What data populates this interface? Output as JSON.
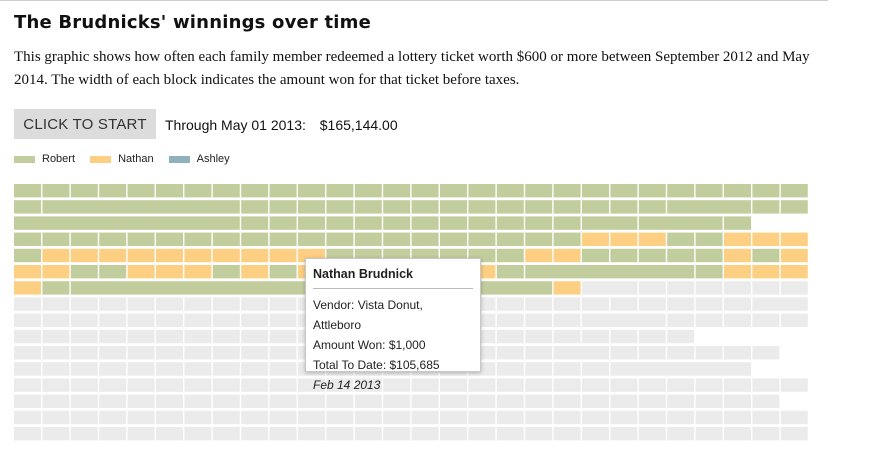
{
  "header": {
    "title": "The Brudnicks' winnings over time",
    "description": "This graphic shows how often each family member redeemed a lottery ticket worth $600 or more between September 2012 and May 2014. The width of each block indicates the amount won for that ticket before taxes."
  },
  "controls": {
    "start_label": "CLICK TO START",
    "through_label": "Through May 01 2013:",
    "total": "$165,144.00"
  },
  "legend": [
    {
      "name": "Robert",
      "color": "#c2cd9d"
    },
    {
      "name": "Nathan",
      "color": "#fdcf83"
    },
    {
      "name": "Ashley",
      "color": "#8fb0bd"
    }
  ],
  "tooltip": {
    "name": "Nathan Brudnick",
    "vendor": "Vendor: Vista Donut, Attleboro",
    "amount": "Amount Won: $1,000",
    "total": "Total To Date: $105,685",
    "date": "Feb 14 2013"
  },
  "chart_data": {
    "type": "bar",
    "title": "The Brudnicks' winnings over time",
    "metric": "amount won per ticket before taxes (USD), block width proportional to amount",
    "series": [
      "Robert",
      "Nathan",
      "Ashley"
    ],
    "unrevealed_color": "#ebebeb",
    "rows": [
      [
        [
          "R",
          1000
        ],
        [
          "R",
          1000
        ],
        [
          "R",
          1000
        ],
        [
          "R",
          1000
        ],
        [
          "R",
          1000
        ],
        [
          "R",
          1000
        ],
        [
          "R",
          1000
        ],
        [
          "R",
          1000
        ],
        [
          "R",
          1000
        ],
        [
          "R",
          1000
        ],
        [
          "R",
          1000
        ],
        [
          "R",
          1000
        ],
        [
          "R",
          1000
        ],
        [
          "R",
          1000
        ],
        [
          "R",
          1000
        ],
        [
          "R",
          1000
        ],
        [
          "R",
          1000
        ],
        [
          "R",
          1000
        ],
        [
          "R",
          1000
        ],
        [
          "R",
          1000
        ],
        [
          "R",
          1000
        ],
        [
          "R",
          1000
        ],
        [
          "R",
          1000
        ],
        [
          "R",
          1000
        ],
        [
          "R",
          1000
        ],
        [
          "R",
          1000
        ],
        [
          "R",
          1000
        ],
        [
          "R",
          1000
        ]
      ],
      [
        [
          "R",
          1000
        ],
        [
          "R",
          7000
        ],
        [
          "R",
          1000
        ],
        [
          "R",
          1000
        ],
        [
          "R",
          1000
        ],
        [
          "R",
          1000
        ],
        [
          "R",
          1000
        ],
        [
          "R",
          1000
        ],
        [
          "R",
          1000
        ],
        [
          "R",
          1000
        ],
        [
          "R",
          1000
        ],
        [
          "R",
          1000
        ],
        [
          "R",
          1000
        ],
        [
          "R",
          1000
        ],
        [
          "R",
          1000
        ],
        [
          "R",
          1000
        ],
        [
          "R",
          1000
        ],
        [
          "R",
          3000
        ],
        [
          "R",
          1000
        ],
        [
          "R",
          4000
        ],
        [
          "R",
          1000
        ]
      ],
      [
        [
          "R",
          8000
        ],
        [
          "R",
          1000
        ],
        [
          "R",
          1000
        ],
        [
          "R",
          1000
        ],
        [
          "R",
          1000
        ],
        [
          "R",
          1000
        ],
        [
          "R",
          1000
        ],
        [
          "R",
          1000
        ],
        [
          "R",
          1000
        ],
        [
          "R",
          1000
        ],
        [
          "R",
          1000
        ],
        [
          "R",
          1000
        ],
        [
          "R",
          1000
        ],
        [
          "R",
          2000
        ],
        [
          "R",
          3000
        ],
        [
          "R",
          1000
        ]
      ],
      [
        [
          "R",
          1000
        ],
        [
          "R",
          1000
        ],
        [
          "R",
          1000
        ],
        [
          "R",
          1000
        ],
        [
          "R",
          1000
        ],
        [
          "R",
          1000
        ],
        [
          "R",
          1000
        ],
        [
          "R",
          1000
        ],
        [
          "R",
          1000
        ],
        [
          "R",
          1000
        ],
        [
          "R",
          1000
        ],
        [
          "R",
          1000
        ],
        [
          "R",
          1000
        ],
        [
          "R",
          1000
        ],
        [
          "R",
          1000
        ],
        [
          "R",
          1000
        ],
        [
          "R",
          1000
        ],
        [
          "R",
          1000
        ],
        [
          "R",
          1000
        ],
        [
          "R",
          1000
        ],
        [
          "N",
          1000
        ],
        [
          "N",
          1000
        ],
        [
          "N",
          1000
        ],
        [
          "R",
          1000
        ],
        [
          "R",
          1000
        ],
        [
          "N",
          1000
        ],
        [
          "N",
          1000
        ],
        [
          "N",
          1000
        ],
        [
          "R",
          1000
        ]
      ],
      [
        [
          "R",
          1000
        ],
        [
          "N",
          1000
        ],
        [
          "N",
          1000
        ],
        [
          "N",
          1000
        ],
        [
          "N",
          1000
        ],
        [
          "N",
          1000
        ],
        [
          "N",
          1000
        ],
        [
          "N",
          1000
        ],
        [
          "N",
          1000
        ],
        [
          "N",
          1000
        ],
        [
          "N",
          1000
        ],
        [
          "R",
          1000
        ],
        [
          "R",
          1000
        ],
        [
          "R",
          1000
        ],
        [
          "R",
          1000
        ],
        [
          "R",
          1000
        ],
        [
          "R",
          1000
        ],
        [
          "R",
          1000
        ],
        [
          "N",
          1000
        ],
        [
          "N",
          1000
        ],
        [
          "R",
          1000
        ],
        [
          "R",
          1000
        ],
        [
          "R",
          1000
        ],
        [
          "R",
          1000
        ],
        [
          "R",
          1000
        ],
        [
          "N",
          1000
        ],
        [
          "R",
          1000
        ],
        [
          "N",
          1000
        ],
        [
          "N",
          1000
        ]
      ],
      [
        [
          "N",
          1000
        ],
        [
          "N",
          1000
        ],
        [
          "R",
          1000
        ],
        [
          "R",
          1000
        ],
        [
          "N",
          1000
        ],
        [
          "N",
          1000
        ],
        [
          "N",
          1000
        ],
        [
          "R",
          1000
        ],
        [
          "N",
          1000
        ],
        [
          "R",
          1000
        ],
        [
          "N",
          1000
        ],
        [
          "N",
          1000
        ],
        [
          "N",
          1000
        ],
        [
          "R",
          1000
        ],
        [
          "R",
          1000
        ],
        [
          "N",
          1000
        ],
        [
          "N",
          1000
        ],
        [
          "R",
          1000
        ],
        [
          "R",
          6000
        ],
        [
          "R",
          1000
        ],
        [
          "N",
          1000
        ],
        [
          "N",
          1000
        ],
        [
          "N",
          1000
        ]
      ],
      [
        [
          "N",
          1000
        ],
        [
          "R",
          1000
        ],
        [
          "R",
          17000
        ],
        [
          "N",
          1000
        ]
      ]
    ]
  }
}
